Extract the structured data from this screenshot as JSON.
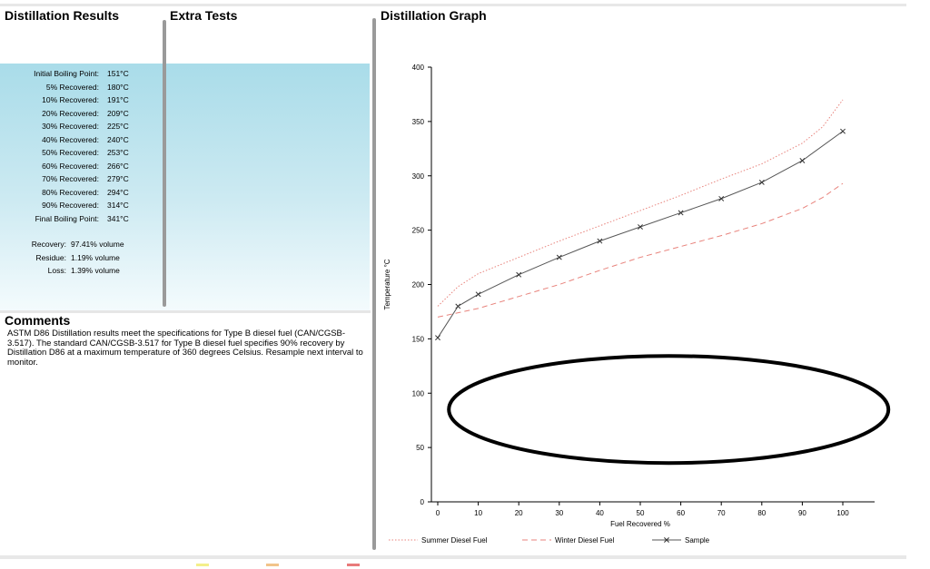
{
  "headers": {
    "distillation_results": "Distillation Results",
    "extra_tests": "Extra Tests",
    "distillation_graph": "Distillation Graph",
    "comments": "Comments"
  },
  "results": [
    {
      "label": "Initial Boiling Point:",
      "value": "151°C"
    },
    {
      "label": "5% Recovered:",
      "value": "180°C"
    },
    {
      "label": "10% Recovered:",
      "value": "191°C"
    },
    {
      "label": "20% Recovered:",
      "value": "209°C"
    },
    {
      "label": "30% Recovered:",
      "value": "225°C"
    },
    {
      "label": "40% Recovered:",
      "value": "240°C"
    },
    {
      "label": "50% Recovered:",
      "value": "253°C"
    },
    {
      "label": "60% Recovered:",
      "value": "266°C"
    },
    {
      "label": "70% Recovered:",
      "value": "279°C"
    },
    {
      "label": "80% Recovered:",
      "value": "294°C"
    },
    {
      "label": "90% Recovered:",
      "value": "314°C"
    },
    {
      "label": "Final Boiling Point:",
      "value": "341°C"
    }
  ],
  "summary": [
    {
      "label": "Recovery:",
      "value": "97.41% volume"
    },
    {
      "label": "Residue:",
      "value": "1.19% volume"
    },
    {
      "label": "Loss:",
      "value": "1.39% volume"
    }
  ],
  "comments_text": "ASTM D86 Distillation results meet the specifications for Type B diesel fuel (CAN/CGSB-3.517). The standard CAN/CGSB-3.517 for Type B diesel fuel specifies 90% recovery by Distillation D86 at a maximum temperature of 360 degrees Celsius. Resample next interval to monitor.",
  "colors": {
    "summer": "#e8837c",
    "winter": "#e8837c",
    "sample": "#555555",
    "status_yellow": "#f4ef8a",
    "status_orange": "#f2c48a",
    "status_red": "#e87a7a"
  },
  "chart_data": {
    "type": "line",
    "xlabel": "Fuel Recovered %",
    "ylabel": "Temperature °C",
    "xlim": [
      0,
      100
    ],
    "ylim": [
      0,
      400
    ],
    "xticks": [
      0,
      10,
      20,
      30,
      40,
      50,
      60,
      70,
      80,
      90,
      100
    ],
    "yticks": [
      0,
      50,
      100,
      150,
      200,
      250,
      300,
      350,
      400
    ],
    "legend_position": "bottom",
    "series": [
      {
        "name": "Summer Diesel Fuel",
        "style": "dotted",
        "x": [
          0,
          5,
          10,
          20,
          30,
          40,
          50,
          60,
          70,
          80,
          90,
          95,
          100
        ],
        "y": [
          180,
          198,
          210,
          225,
          240,
          254,
          268,
          282,
          297,
          311,
          330,
          345,
          370
        ]
      },
      {
        "name": "Winter Diesel Fuel",
        "style": "dashed",
        "x": [
          0,
          10,
          20,
          30,
          40,
          50,
          60,
          70,
          80,
          90,
          95,
          100
        ],
        "y": [
          170,
          178,
          189,
          200,
          213,
          225,
          235,
          245,
          256,
          270,
          280,
          293
        ]
      },
      {
        "name": "Sample",
        "style": "solid-x",
        "x": [
          0,
          5,
          10,
          20,
          30,
          40,
          50,
          60,
          70,
          80,
          90,
          100
        ],
        "y": [
          151,
          180,
          191,
          209,
          225,
          240,
          253,
          266,
          279,
          294,
          314,
          341
        ]
      }
    ]
  }
}
